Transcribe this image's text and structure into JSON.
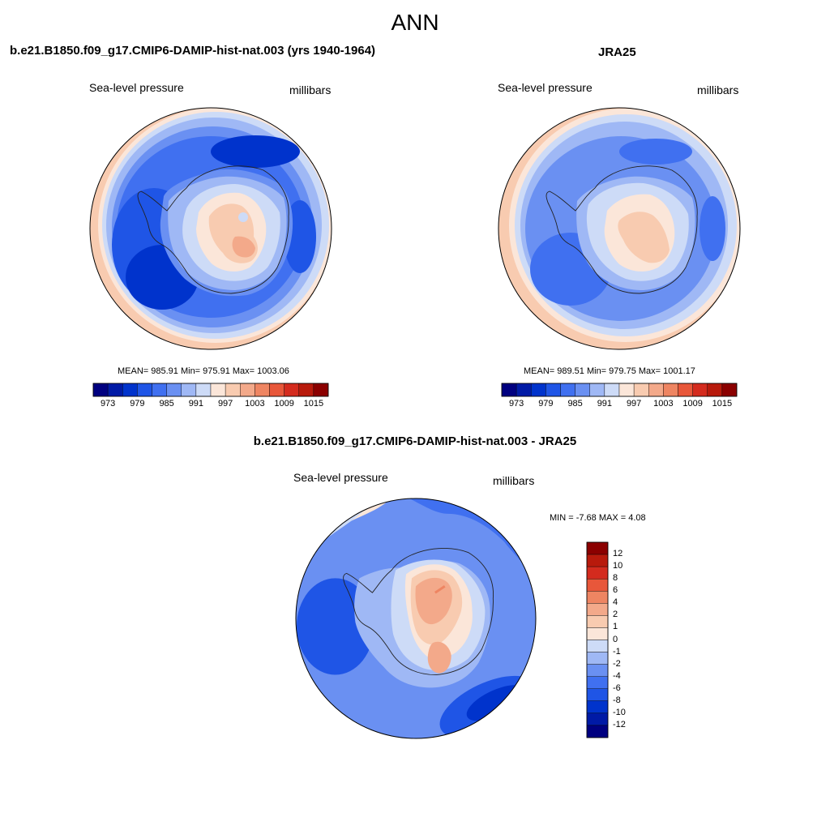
{
  "title": "ANN",
  "colors": {
    "levels": [
      "#000080",
      "#001aa6",
      "#0033cc",
      "#1f55e6",
      "#4070f0",
      "#6a90f2",
      "#9fb8f5",
      "#cddbf7",
      "#fbe6d9",
      "#f8cbb0",
      "#f3a98a",
      "#ee8562",
      "#e8573a",
      "#d42b1e",
      "#b81a0c",
      "#8b0000"
    ],
    "coast": "#222222",
    "border": "#000000"
  },
  "panels": [
    {
      "id": "model",
      "title": "b.e21.B1850.f09_g17.CMIP6-DAMIP-hist-nat.003 (yrs 1940-1964)",
      "left_label": "Sea-level pressure",
      "right_label": "millibars",
      "stats": "MEAN= 985.91  Min= 975.91  Max= 1003.06"
    },
    {
      "id": "obs",
      "title": "JRA25",
      "left_label": "Sea-level pressure",
      "right_label": "millibars",
      "stats": "MEAN= 989.51  Min= 979.75  Max= 1001.17"
    },
    {
      "id": "diff",
      "title": "b.e21.B1850.f09_g17.CMIP6-DAMIP-hist-nat.003 - JRA25",
      "left_label": "Sea-level pressure",
      "right_label": "millibars",
      "stats": "MIN =  -7.68 MAX =   4.08"
    }
  ],
  "colorbar_h_ticks": [
    "973",
    "979",
    "985",
    "991",
    "997",
    "1003",
    "1009",
    "1015"
  ],
  "colorbar_v_ticks": [
    "12",
    "10",
    "8",
    "6",
    "4",
    "2",
    "1",
    "0",
    "-1",
    "-2",
    "-4",
    "-6",
    "-8",
    "-10",
    "-12"
  ]
}
